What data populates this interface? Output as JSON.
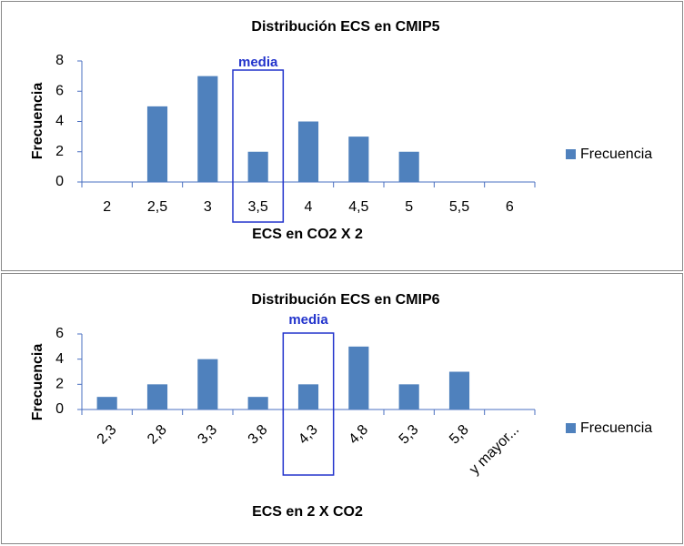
{
  "chart_data": [
    {
      "type": "bar",
      "title": "Distribución  ECS en CMIP5",
      "x_label": "ECS en CO2 X 2",
      "y_label": "Frecuencia",
      "annotation": "media",
      "categories": [
        "2",
        "2,5",
        "3",
        "3,5",
        "4",
        "4,5",
        "5",
        "5,5",
        "6"
      ],
      "series": [
        {
          "name": "Frecuencia",
          "color": "#4f81bd",
          "values": [
            0,
            5,
            7,
            2,
            4,
            3,
            2,
            0,
            0
          ]
        }
      ],
      "ylim": [
        0,
        8
      ],
      "yticks": [
        0,
        2,
        4,
        6,
        8
      ],
      "legend": "right"
    },
    {
      "type": "bar",
      "title": "Distribución  ECS en CMIP6",
      "x_label": "ECS en 2 X CO2",
      "y_label": "Frecuencia",
      "annotation": "media",
      "categories": [
        "2,3",
        "2,8",
        "3,3",
        "3,8",
        "4,3",
        "4,8",
        "5,3",
        "5,8",
        "y mayor..."
      ],
      "series": [
        {
          "name": "Frecuencia",
          "color": "#4f81bd",
          "values": [
            1,
            2,
            4,
            1,
            2,
            5,
            2,
            3,
            0
          ]
        }
      ],
      "ylim": [
        0,
        6
      ],
      "yticks": [
        0,
        2,
        4,
        6
      ],
      "legend": "right"
    }
  ]
}
